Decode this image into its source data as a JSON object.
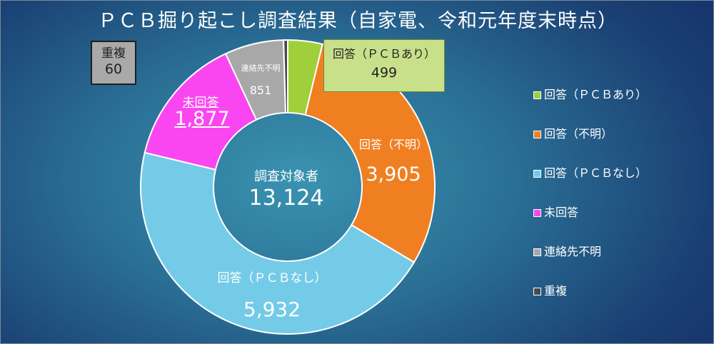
{
  "chart_data": {
    "type": "pie",
    "title": "ＰＣＢ掘り起こし調査結果（自家電、令和元年度末時点）",
    "center_label": "調査対象者",
    "center_value": "13,124",
    "legend_position": "right",
    "slices": [
      {
        "name": "回答（ＰＣＢあり）",
        "value": 499,
        "value_label": "499",
        "color": "#9fd03b"
      },
      {
        "name": "回答（不明）",
        "value": 3905,
        "value_label": "3,905",
        "color": "#f07f22"
      },
      {
        "name": "回答（ＰＣＢなし）",
        "value": 5932,
        "value_label": "5,932",
        "color": "#74cbe8"
      },
      {
        "name": "未回答",
        "value": 1877,
        "value_label": "1,877",
        "color": "#fa46f0"
      },
      {
        "name": "連絡先不明",
        "value": 851,
        "value_label": "851",
        "color": "#a8a8a8"
      },
      {
        "name": "重複",
        "value": 60,
        "value_label": "60",
        "color": "#4a4a4a"
      }
    ]
  }
}
